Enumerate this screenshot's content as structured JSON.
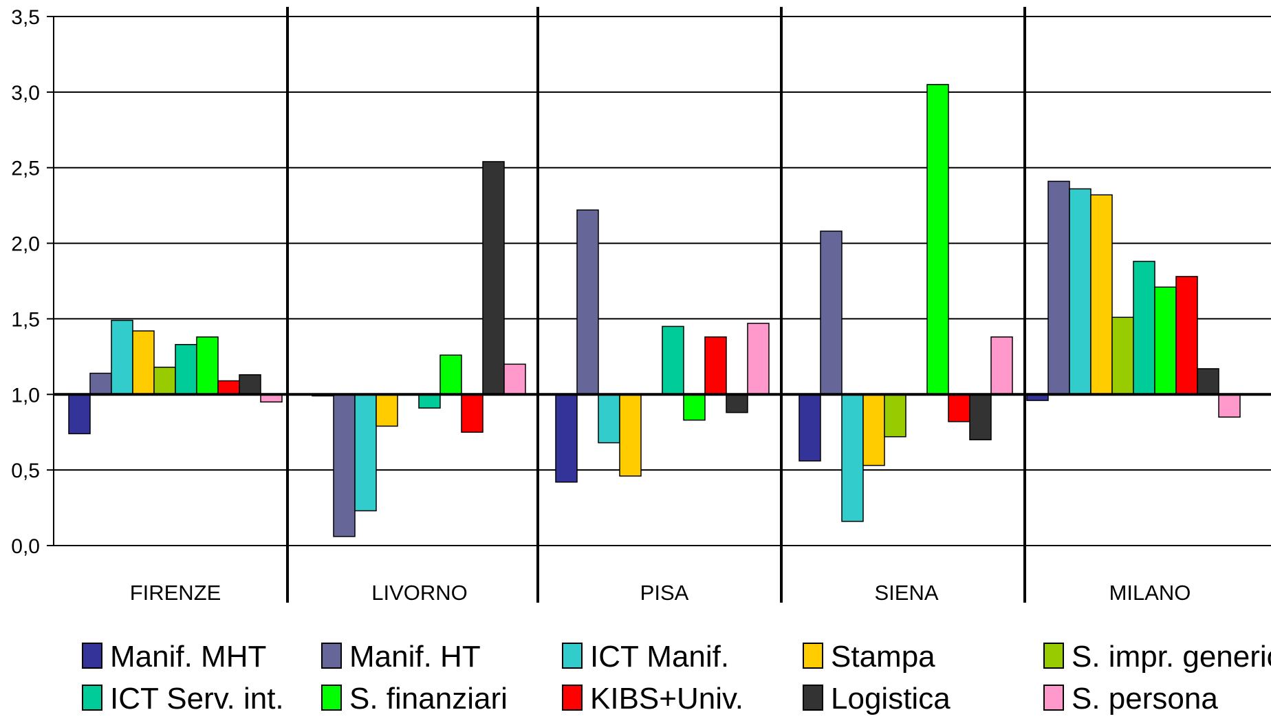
{
  "chart_data": {
    "type": "bar",
    "title": "",
    "xlabel": "",
    "ylabel": "",
    "ylim": [
      0,
      3.5
    ],
    "baseline": 1.0,
    "yticks": [
      "0,0",
      "0,5",
      "1,0",
      "1,5",
      "2,0",
      "2,5",
      "3,0",
      "3,5"
    ],
    "ytick_values": [
      0,
      0.5,
      1.0,
      1.5,
      2.0,
      2.5,
      3.0,
      3.5
    ],
    "grid": true,
    "legend_position": "bottom",
    "categories": [
      "FIRENZE",
      "LIVORNO",
      "PISA",
      "SIENA",
      "MILANO"
    ],
    "series": [
      {
        "name": "Manif. MHT",
        "color": "#333399",
        "values": [
          0.74,
          0.99,
          0.42,
          0.56,
          0.96
        ]
      },
      {
        "name": "Manif. HT",
        "color": "#666699",
        "values": [
          1.14,
          0.06,
          2.22,
          2.08,
          2.41
        ]
      },
      {
        "name": "ICT Manif.",
        "color": "#33CCCC",
        "values": [
          1.49,
          0.23,
          0.68,
          0.16,
          2.36
        ]
      },
      {
        "name": "Stampa",
        "color": "#FFCC00",
        "values": [
          1.42,
          0.79,
          0.46,
          0.53,
          2.32
        ]
      },
      {
        "name": "S. impr. generici",
        "color": "#99CC00",
        "values": [
          1.18,
          1.0,
          1.0,
          0.72,
          1.51
        ]
      },
      {
        "name": "ICT Serv. int.",
        "color": "#00CC99",
        "values": [
          1.33,
          0.91,
          1.45,
          1.0,
          1.88
        ]
      },
      {
        "name": "S. finanziari",
        "color": "#00FF00",
        "values": [
          1.38,
          1.26,
          0.83,
          3.05,
          1.71
        ]
      },
      {
        "name": "KIBS+Univ.",
        "color": "#FF0000",
        "values": [
          1.09,
          0.75,
          1.38,
          0.82,
          1.78
        ]
      },
      {
        "name": "Logistica",
        "color": "#333333",
        "values": [
          1.13,
          2.54,
          0.88,
          0.7,
          1.17
        ]
      },
      {
        "name": "S. persona",
        "color": "#FF99CC",
        "values": [
          0.95,
          1.2,
          1.47,
          1.38,
          0.85
        ]
      }
    ]
  }
}
